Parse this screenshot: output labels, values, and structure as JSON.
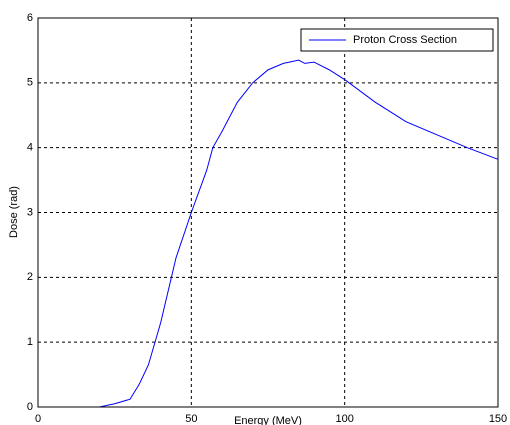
{
  "chart_data": {
    "type": "line",
    "xlabel": "Energy (MeV)",
    "ylabel": "Dose (rad)",
    "x": [
      0,
      20,
      25,
      30,
      33,
      36,
      40,
      45,
      50,
      55,
      57,
      60,
      65,
      70,
      75,
      80,
      85,
      87,
      90,
      95,
      100,
      110,
      120,
      130,
      140,
      150
    ],
    "series": [
      {
        "name": "Proton Cross Section",
        "color": "#0000ff",
        "values": [
          0,
          0,
          0.05,
          0.12,
          0.35,
          0.65,
          1.3,
          2.3,
          3.0,
          3.65,
          4.0,
          4.25,
          4.7,
          5.0,
          5.2,
          5.3,
          5.35,
          5.3,
          5.32,
          5.2,
          5.05,
          4.7,
          4.4,
          4.2,
          4.0,
          3.82
        ]
      }
    ],
    "xlim": [
      0,
      150
    ],
    "xticks": [
      0,
      50,
      100,
      150
    ],
    "ylim": [
      0,
      6
    ],
    "yticks": [
      0,
      1,
      2,
      3,
      4,
      5,
      6
    ],
    "grid": true,
    "legend": "upper right"
  }
}
